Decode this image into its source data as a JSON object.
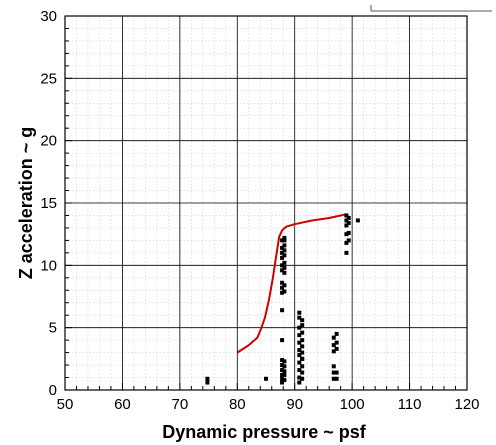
{
  "chart_data": {
    "type": "scatter",
    "title": "",
    "xlabel": "Dynamic pressure ~ psf",
    "ylabel": "Z acceleration ~ g",
    "xlim": [
      50,
      120
    ],
    "ylim": [
      0,
      30
    ],
    "x_ticks": [
      50,
      60,
      70,
      80,
      90,
      100,
      110,
      120
    ],
    "y_ticks": [
      0,
      5,
      10,
      15,
      20,
      25,
      30
    ],
    "x_tick_labels": [
      "50",
      "60",
      "70",
      "80",
      "90",
      "100",
      "110",
      "120"
    ],
    "y_tick_labels": [
      "0",
      "5",
      "10",
      "15",
      "20",
      "25",
      "30"
    ],
    "grid": "major and minor",
    "series": [
      {
        "type": "line",
        "color": "#cc0000",
        "x": [
          80,
          82,
          83.5,
          84.2,
          84.8,
          85.5,
          86.2,
          86.8,
          87.3,
          87.8,
          88.5,
          90,
          93,
          96,
          99
        ],
        "y": [
          3.0,
          3.6,
          4.2,
          5.0,
          5.8,
          7.2,
          9.0,
          10.8,
          12.3,
          12.8,
          13.1,
          13.3,
          13.6,
          13.8,
          14.1
        ]
      },
      {
        "type": "scatter",
        "color": "#000000",
        "x": [
          74.8,
          74.8,
          85,
          87.8,
          87.8,
          87.8,
          87.8,
          87.8,
          87.8,
          87.8,
          87.8,
          87.8,
          87.8,
          87.8,
          87.8,
          87.8,
          87.8,
          87.8,
          87.8,
          87.8,
          88.2,
          88.2,
          88.2,
          88.2,
          88.2,
          88.2,
          88.2,
          88.2,
          88.2,
          88.2,
          88.2,
          88.2,
          88.2,
          88.2,
          88.2,
          90.8,
          90.8,
          90.8,
          90.8,
          90.8,
          90.8,
          90.8,
          90.8,
          90.8,
          90.8,
          90.8,
          91.3,
          91.3,
          91.3,
          91.3,
          91.3,
          91.3,
          91.3,
          91.3,
          91.3,
          91.3,
          91.3,
          96.8,
          96.8,
          96.8,
          96.8,
          96.8,
          96.8,
          97.3,
          97.3,
          97.3,
          97.3,
          97.3,
          99,
          99,
          99,
          99,
          99,
          99,
          99.4,
          99.4,
          99.4,
          99.4,
          101
        ],
        "y": [
          0.6,
          0.9,
          0.9,
          0.6,
          0.9,
          1.2,
          1.6,
          2.0,
          2.4,
          4.0,
          6.4,
          7.8,
          8.2,
          8.6,
          9.6,
          10.0,
          10.6,
          11.0,
          11.4,
          12.0,
          0.8,
          1.2,
          1.5,
          1.9,
          2.3,
          7.9,
          8.4,
          9.4,
          9.8,
          10.2,
          10.8,
          11.2,
          11.6,
          12.0,
          12.2,
          0.6,
          1.0,
          1.6,
          2.2,
          2.8,
          3.2,
          3.8,
          4.4,
          5.0,
          5.8,
          6.2,
          0.9,
          1.4,
          1.9,
          2.5,
          3.0,
          3.5,
          4.0,
          4.6,
          5.2,
          5.6,
          2.5,
          0.9,
          1.4,
          1.9,
          3.1,
          3.6,
          4.2,
          0.9,
          1.4,
          3.3,
          3.8,
          4.5,
          11.0,
          11.8,
          12.5,
          13.2,
          13.6,
          14.0,
          12.0,
          12.6,
          13.4,
          13.8,
          13.6
        ]
      }
    ]
  }
}
